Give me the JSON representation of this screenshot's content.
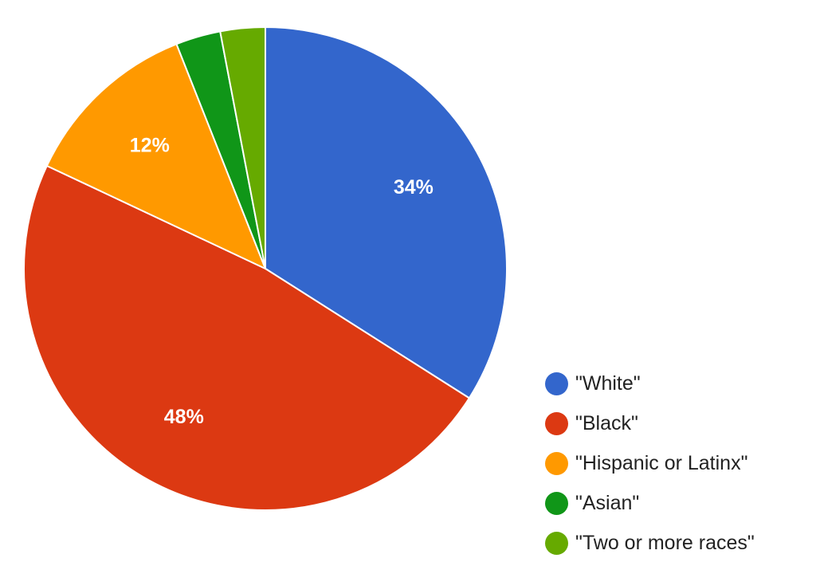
{
  "chart_data": {
    "type": "pie",
    "title": "",
    "slices": [
      {
        "name": "\"White\"",
        "value": 34,
        "label": "34%",
        "color": "#3366cc"
      },
      {
        "name": "\"Black\"",
        "value": 48,
        "label": "48%",
        "color": "#dc3912"
      },
      {
        "name": "\"Hispanic or Latinx\"",
        "value": 12,
        "label": "12%",
        "color": "#ff9900"
      },
      {
        "name": "\"Asian\"",
        "value": 3,
        "label": "",
        "color": "#109618"
      },
      {
        "name": "\"Two or more races\"",
        "value": 3,
        "label": "",
        "color": "#66aa00"
      }
    ],
    "legend_position": "bottom-right"
  }
}
